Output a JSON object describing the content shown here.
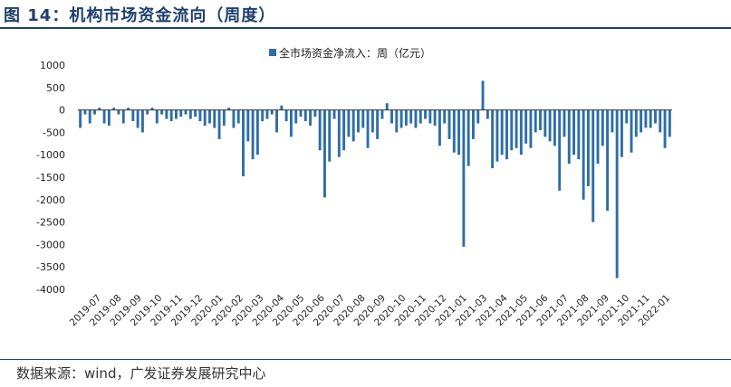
{
  "page": {
    "title": "图 14：机构市场资金流向（周度）",
    "source": "数据来源：wind，广发证券发展研究中心"
  },
  "chart_data": {
    "type": "bar",
    "title": "",
    "xlabel": "",
    "ylabel": "",
    "ylim": [
      -4000,
      1000
    ],
    "yticks": [
      1000,
      500,
      0,
      -500,
      -1000,
      -1500,
      -2000,
      -2500,
      -3000,
      -3500,
      -4000
    ],
    "grid": false,
    "legend_position": "top-center",
    "bar_color": "#2e6ea6",
    "xtick_labels": [
      "2019-07",
      "2019-08",
      "2019-09",
      "2019-10",
      "2019-11",
      "2019-12",
      "2020-01",
      "2020-02",
      "2020-03",
      "2020-04",
      "2020-05",
      "2020-06",
      "2020-07",
      "2020-08",
      "2020-09",
      "2020-10",
      "2020-11",
      "2020-12",
      "2021-01",
      "2021-03",
      "2021-04",
      "2021-05",
      "2021-06",
      "2021-07",
      "2021-08",
      "2021-09",
      "2021-10",
      "2021-11",
      "2022-01"
    ],
    "series": [
      {
        "name": "全市场资金净流入：周（亿元）",
        "values": [
          -400,
          -100,
          -300,
          -100,
          50,
          -300,
          -350,
          50,
          -100,
          -300,
          50,
          -250,
          -400,
          -500,
          -100,
          50,
          -300,
          -100,
          -200,
          -250,
          -200,
          -150,
          -100,
          -200,
          -150,
          -250,
          -350,
          -300,
          -400,
          -650,
          -350,
          50,
          -400,
          -300,
          -1480,
          -700,
          -1100,
          -1000,
          -250,
          -200,
          -100,
          -500,
          100,
          -250,
          -600,
          -300,
          -150,
          -250,
          -350,
          -150,
          -900,
          -1950,
          -1150,
          -200,
          -1050,
          -900,
          -600,
          -700,
          -500,
          -400,
          -850,
          -500,
          -650,
          -200,
          150,
          -300,
          -500,
          -400,
          -350,
          -300,
          -400,
          -300,
          -200,
          -300,
          -350,
          -800,
          -300,
          -650,
          -950,
          -1000,
          -3050,
          -1250,
          -650,
          -300,
          650,
          -200,
          -1300,
          -1150,
          -1000,
          -1100,
          -900,
          -850,
          -1000,
          -750,
          -850,
          -500,
          -450,
          -600,
          -700,
          -800,
          -1800,
          -600,
          -1200,
          -1000,
          -1100,
          -2000,
          -1700,
          -2500,
          -1200,
          -800,
          -2250,
          -500,
          -3750,
          -1050,
          -300,
          -950,
          -600,
          -500,
          -400,
          -400,
          -300,
          -500,
          -850,
          -600
        ]
      }
    ]
  }
}
